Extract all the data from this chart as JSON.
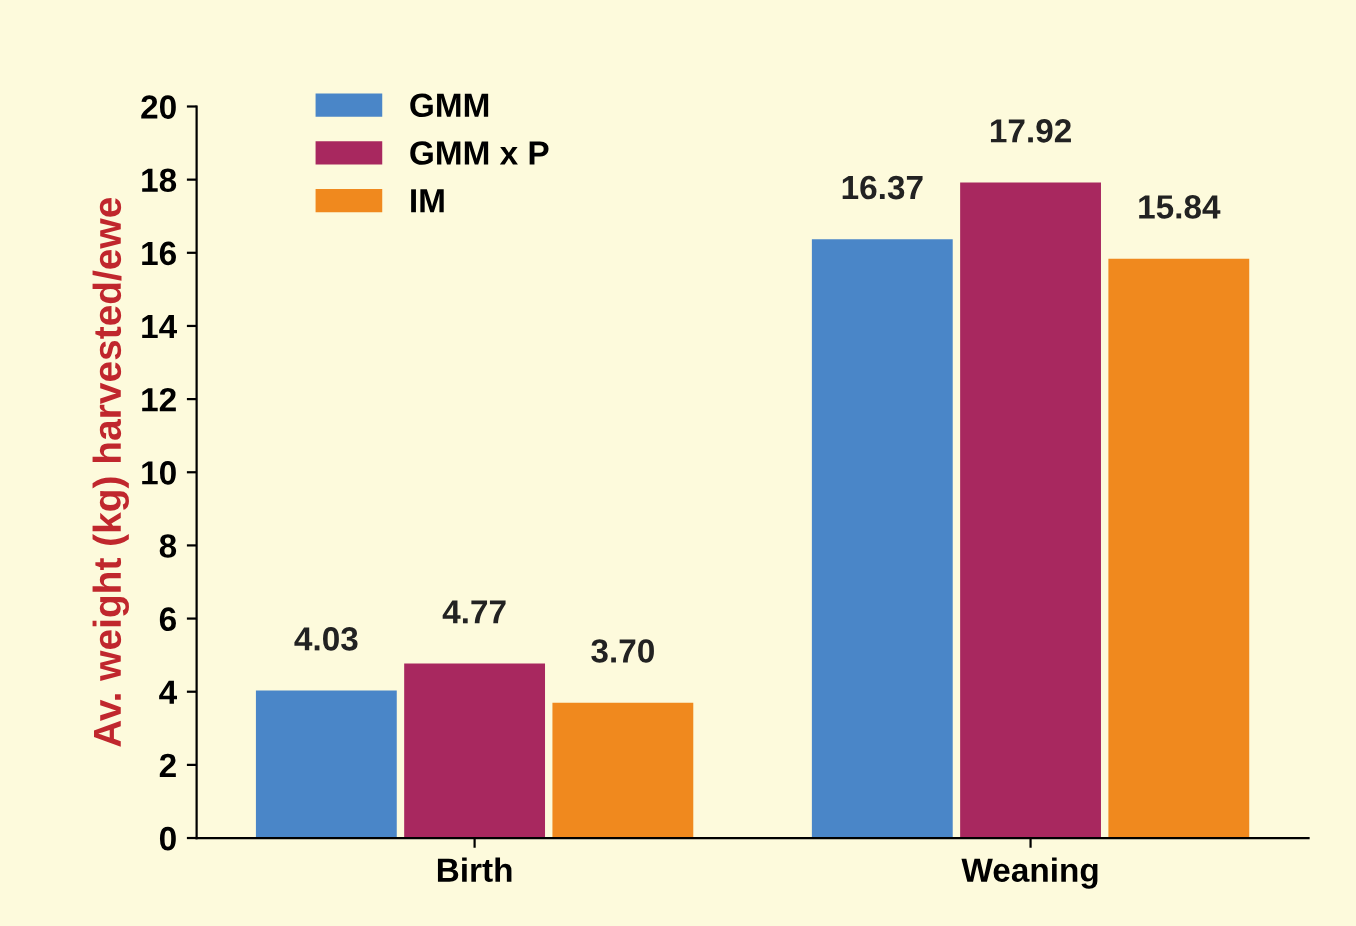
{
  "chart_data": {
    "type": "bar",
    "ylabel": "Av. weight (kg) harvested/ewe",
    "categories": [
      "Birth",
      "Weaning"
    ],
    "series": [
      {
        "name": "GMM",
        "color": "#4a86c8",
        "values": [
          4.03,
          16.37
        ],
        "value_labels": [
          "4.03",
          "16.37"
        ]
      },
      {
        "name": "GMM x P",
        "color": "#a8285f",
        "values": [
          4.77,
          17.92
        ],
        "value_labels": [
          "4.77",
          "17.92"
        ]
      },
      {
        "name": "IM",
        "color": "#f0891e",
        "values": [
          3.7,
          15.84
        ],
        "value_labels": [
          "3.70",
          "15.84"
        ]
      }
    ],
    "ylim": [
      0,
      20
    ],
    "yticks": [
      0,
      2,
      4,
      6,
      8,
      10,
      12,
      14,
      16,
      18,
      20
    ],
    "grid": false,
    "legend": "top left"
  }
}
